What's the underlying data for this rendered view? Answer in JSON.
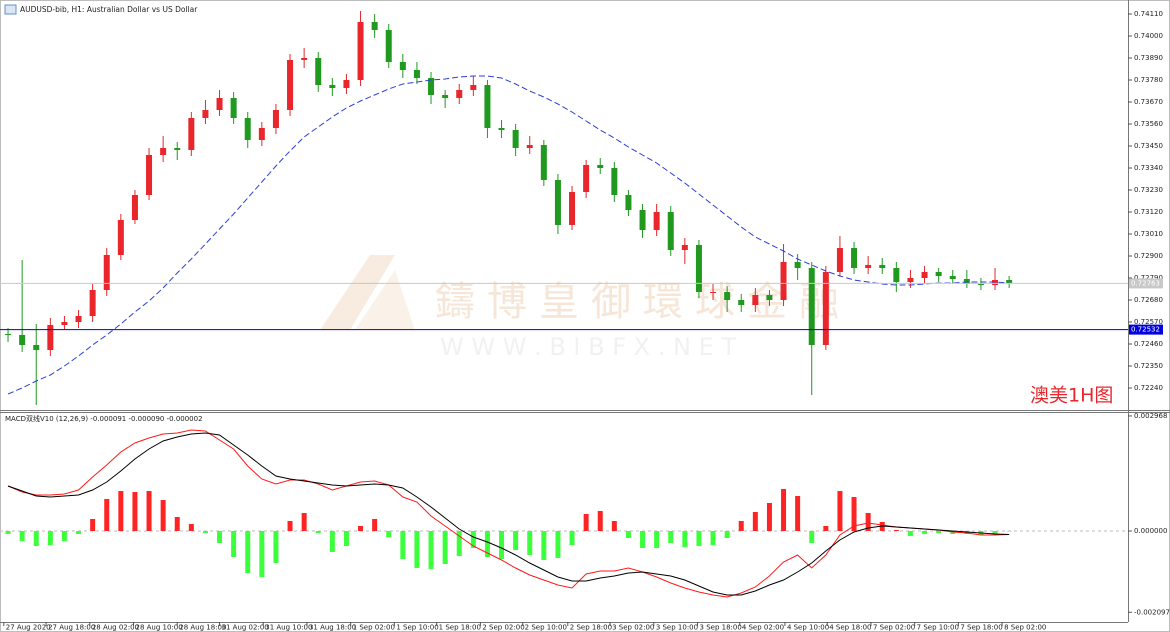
{
  "chart_data": [
    {
      "type": "candlestick",
      "title": "AUDUSD-bib, H1:  Australian Dollar vs US Dollar",
      "annotation": "澳美1H图",
      "watermark": "鑄博皇御環球金融",
      "watermark_url": "W W W . B I B F X . N E T",
      "grid": false,
      "xlim": [
        -0.57,
        79.43
      ],
      "ylim": [
        0.7213,
        0.7418
      ],
      "yticks": [
        {
          "value": 0.7411,
          "label": "0.74110"
        },
        {
          "value": 0.74,
          "label": "0.74000"
        },
        {
          "value": 0.7389,
          "label": "0.73890"
        },
        {
          "value": 0.7378,
          "label": "0.73780"
        },
        {
          "value": 0.7367,
          "label": "0.73670"
        },
        {
          "value": 0.7356,
          "label": "0.73560"
        },
        {
          "value": 0.7345,
          "label": "0.73450"
        },
        {
          "value": 0.7334,
          "label": "0.73340"
        },
        {
          "value": 0.7323,
          "label": "0.73230"
        },
        {
          "value": 0.7312,
          "label": "0.73120"
        },
        {
          "value": 0.7301,
          "label": "0.73010"
        },
        {
          "value": 0.729,
          "label": "0.72900"
        },
        {
          "value": 0.7279,
          "label": "0.72790"
        },
        {
          "value": 0.7268,
          "label": "0.72680"
        },
        {
          "value": 0.7257,
          "label": "0.72570"
        },
        {
          "value": 0.7246,
          "label": "0.72460"
        },
        {
          "value": 0.7235,
          "label": "0.72350"
        },
        {
          "value": 0.7224,
          "label": "0.72240"
        }
      ],
      "up_color": "#e8262c",
      "down_color": "#1f9a1f",
      "open": [
        0.7251,
        0.72505,
        0.72455,
        0.7243,
        0.72555,
        0.7257,
        0.726,
        0.7273,
        0.72905,
        0.7308,
        0.73205,
        0.73405,
        0.7344,
        0.7343,
        0.7359,
        0.7363,
        0.7369,
        0.7359,
        0.7348,
        0.7354,
        0.7363,
        0.7388,
        0.7389,
        0.73755,
        0.7374,
        0.7378,
        0.7407,
        0.7403,
        0.7387,
        0.7383,
        0.7379,
        0.73705,
        0.7369,
        0.7373,
        0.73755,
        0.7354,
        0.7353,
        0.7344,
        0.73455,
        0.7328,
        0.73055,
        0.7322,
        0.73355,
        0.7334,
        0.73205,
        0.7313,
        0.7303,
        0.7312,
        0.7293,
        0.72955,
        0.7272,
        0.7272,
        0.7268,
        0.72655,
        0.72705,
        0.7268,
        0.7287,
        0.7284,
        0.72455,
        0.7282,
        0.7294,
        0.7284,
        0.72855,
        0.7284,
        0.7277,
        0.7279,
        0.7282,
        0.728,
        0.72785,
        0.7276,
        0.72755,
        0.7278
      ],
      "high": [
        0.7254,
        0.7288,
        0.7256,
        0.7259,
        0.726,
        0.7263,
        0.7276,
        0.7294,
        0.7311,
        0.7323,
        0.7344,
        0.735,
        0.7347,
        0.7362,
        0.7368,
        0.7373,
        0.7372,
        0.7362,
        0.7357,
        0.7366,
        0.7391,
        0.7394,
        0.7392,
        0.7379,
        0.7381,
        0.74125,
        0.7411,
        0.7406,
        0.7391,
        0.7387,
        0.7382,
        0.7373,
        0.7376,
        0.738,
        0.7378,
        0.7358,
        0.7356,
        0.735,
        0.7348,
        0.7331,
        0.7325,
        0.7338,
        0.7339,
        0.7337,
        0.7323,
        0.7316,
        0.7316,
        0.7315,
        0.7299,
        0.7298,
        0.7276,
        0.7275,
        0.7271,
        0.7274,
        0.7273,
        0.7296,
        0.7291,
        0.7287,
        0.7285,
        0.73,
        0.7297,
        0.729,
        0.7289,
        0.7287,
        0.7283,
        0.7285,
        0.7284,
        0.7283,
        0.7283,
        0.7279,
        0.7284,
        0.728
      ],
      "low": [
        0.7247,
        0.7242,
        0.72155,
        0.724,
        0.7253,
        0.7254,
        0.7257,
        0.727,
        0.7288,
        0.7306,
        0.7318,
        0.7337,
        0.7338,
        0.734,
        0.7356,
        0.736,
        0.7356,
        0.7344,
        0.7345,
        0.7351,
        0.736,
        0.7384,
        0.7372,
        0.737,
        0.7371,
        0.7375,
        0.7399,
        0.7384,
        0.7379,
        0.7376,
        0.7366,
        0.7364,
        0.7366,
        0.737,
        0.7349,
        0.7349,
        0.734,
        0.7341,
        0.7325,
        0.7301,
        0.7303,
        0.7319,
        0.7331,
        0.7317,
        0.731,
        0.7299,
        0.73,
        0.729,
        0.7286,
        0.7269,
        0.7268,
        0.7262,
        0.7262,
        0.7262,
        0.7265,
        0.7265,
        0.7278,
        0.72205,
        0.7243,
        0.728,
        0.7281,
        0.7281,
        0.7281,
        0.7272,
        0.7274,
        0.7276,
        0.7277,
        0.7276,
        0.7274,
        0.7273,
        0.7273,
        0.7274
      ],
      "close": [
        0.72505,
        0.72455,
        0.7243,
        0.72555,
        0.7257,
        0.726,
        0.7273,
        0.72905,
        0.7308,
        0.73205,
        0.73405,
        0.7344,
        0.7343,
        0.7359,
        0.7363,
        0.7369,
        0.7359,
        0.7348,
        0.7354,
        0.7363,
        0.7388,
        0.7389,
        0.73755,
        0.7374,
        0.7378,
        0.7407,
        0.7403,
        0.7387,
        0.7383,
        0.7379,
        0.73705,
        0.7369,
        0.7373,
        0.73755,
        0.7354,
        0.7353,
        0.7344,
        0.73455,
        0.7328,
        0.73055,
        0.7322,
        0.73355,
        0.7334,
        0.73205,
        0.7313,
        0.7303,
        0.7312,
        0.7293,
        0.72955,
        0.7272,
        0.7272,
        0.7268,
        0.72655,
        0.72705,
        0.7268,
        0.7287,
        0.7284,
        0.72455,
        0.7282,
        0.7294,
        0.7284,
        0.72855,
        0.7284,
        0.7277,
        0.7279,
        0.7282,
        0.728,
        0.72785,
        0.7276,
        0.72755,
        0.7278,
        0.72763
      ],
      "ma": {
        "color": "#2a3fd6",
        "values": [
          0.7221,
          0.7224,
          0.72275,
          0.72305,
          0.7235,
          0.724,
          0.72455,
          0.72505,
          0.7256,
          0.7262,
          0.72675,
          0.7274,
          0.72815,
          0.72885,
          0.7296,
          0.73035,
          0.7311,
          0.7319,
          0.7327,
          0.7335,
          0.73425,
          0.73495,
          0.73545,
          0.73595,
          0.7364,
          0.73675,
          0.73705,
          0.73735,
          0.7376,
          0.7377,
          0.7378,
          0.73785,
          0.73795,
          0.738,
          0.738,
          0.7379,
          0.7376,
          0.73725,
          0.73695,
          0.7366,
          0.7362,
          0.73575,
          0.7353,
          0.7349,
          0.73445,
          0.73405,
          0.73365,
          0.73315,
          0.73265,
          0.7321,
          0.73155,
          0.731,
          0.73045,
          0.72995,
          0.7296,
          0.72925,
          0.72885,
          0.72855,
          0.72825,
          0.728,
          0.7278,
          0.7277,
          0.7276,
          0.72755,
          0.72755,
          0.7276,
          0.72765,
          0.72765,
          0.7277,
          0.7277,
          0.7277,
          0.72765
        ]
      },
      "hlines": [
        {
          "value": 0.72763,
          "color": "#c8c8c8"
        },
        {
          "value": 0.72532,
          "color": "#0000e0"
        }
      ]
    },
    {
      "type": "macd",
      "title": "MACD双线V10 (12,26,9) -0.000091 -0.000090 -0.000002",
      "xlim": [
        -0.57,
        79.43
      ],
      "ylim": [
        -0.002348,
        0.00307
      ],
      "yticks": [
        0.002968,
        {
          "value": 0,
          "label": "0.000000"
        },
        -0.002097
      ],
      "xticks": [
        {
          "value": -0.3,
          "label": "27 Aug 2020"
        },
        {
          "value": 2.7,
          "label": "27 Aug 18:00"
        },
        {
          "value": 5.8,
          "label": "28 Aug 02:00"
        },
        {
          "value": 8.9,
          "label": "28 Aug 10:00"
        },
        {
          "value": 12,
          "label": "28 Aug 18:00"
        },
        {
          "value": 15,
          "label": "31 Aug 02:00"
        },
        {
          "value": 18.1,
          "label": "31 Aug 10:00"
        },
        {
          "value": 21.2,
          "label": "31 Aug 18:00"
        },
        {
          "value": 24.3,
          "label": "1 Sep 02:00"
        },
        {
          "value": 27.4,
          "label": "1 Sep 10:00"
        },
        {
          "value": 30.4,
          "label": "1 Sep 18:00"
        },
        {
          "value": 33.5,
          "label": "2 Sep 02:00"
        },
        {
          "value": 36.5,
          "label": "2 Sep 10:00"
        },
        {
          "value": 39.7,
          "label": "2 Sep 18:00"
        },
        {
          "value": 42.7,
          "label": "3 Sep 02:00"
        },
        {
          "value": 45.8,
          "label": "3 Sep 10:00"
        },
        {
          "value": 48.9,
          "label": "3 Sep 18:00"
        },
        {
          "value": 51.9,
          "label": "4 Sep 02:00"
        },
        {
          "value": 55.1,
          "label": "4 Sep 10:00"
        },
        {
          "value": 58.1,
          "label": "4 Sep 18:00"
        },
        {
          "value": 61.2,
          "label": "7 Sep 02:00"
        },
        {
          "value": 64.3,
          "label": "7 Sep 10:00"
        },
        {
          "value": 67.4,
          "label": "7 Sep 18:00"
        },
        {
          "value": 70.5,
          "label": "8 Sep 02:00"
        }
      ],
      "up_color": "#ff2424",
      "down_color": "#3cff3c",
      "histogram": [
        -7.7e-05,
        -0.000258,
        -0.000387,
        -0.000361,
        -0.000258,
        -7.7e-05,
        0.00031,
        0.000826,
        0.001032,
        0.001006,
        0.001032,
        0.0008,
        0.000361,
        0.000181,
        -5.2e-05,
        -0.00031,
        -0.000671,
        -0.001084,
        -0.001187,
        -0.000826,
        0.000258,
        0.000464,
        -5.2e-05,
        -0.000542,
        -0.000387,
        0.000129,
        0.00031,
        -0.000155,
        -0.000722,
        -0.000955,
        -0.00098,
        -0.000851,
        -0.000645,
        -0.000439,
        -0.000671,
        -0.000722,
        -0.00049,
        -0.000619,
        -0.000748,
        -0.000697,
        -0.000361,
        0.000439,
        0.000516,
        0.000258,
        -0.000181,
        -0.000439,
        -0.000439,
        -0.00031,
        -0.000413,
        -0.000387,
        -0.000361,
        -0.000181,
        0.000258,
        0.00049,
        0.000722,
        0.001084,
        0.000903,
        -0.00031,
        0.000129,
        0.001032,
        0.000877,
        0.000464,
        0.000232,
        2.6e-05,
        -0.000129,
        -7.7e-05,
        -5.2e-05,
        -7.7e-05,
        -7.7e-05,
        -0.000103,
        -7.7e-05,
        -2e-06
      ],
      "series": [
        {
          "color": "#ff1a1a",
          "values": [
            0.001161,
            0.001006,
            0.000929,
            0.000929,
            0.000955,
            0.001058,
            0.001393,
            0.001703,
            0.002038,
            0.00227,
            0.002399,
            0.002503,
            0.002528,
            0.002606,
            0.00258,
            0.002348,
            0.002116,
            0.001677,
            0.001342,
            0.001213,
            0.001316,
            0.001316,
            0.001213,
            0.001058,
            0.001161,
            0.001264,
            0.00129,
            0.001187,
            0.000877,
            0.000748,
            0.000387,
            0.000129,
            -0.000129,
            -0.000387,
            -0.000568,
            -0.000748,
            -0.000955,
            -0.001135,
            -0.001264,
            -0.001393,
            -0.001471,
            -0.001109,
            -0.001032,
            -0.001032,
            -0.000955,
            -0.001058,
            -0.001187,
            -0.001342,
            -0.001471,
            -0.001574,
            -0.001651,
            -0.001703,
            -0.0016,
            -0.001445,
            -0.001161,
            -0.0008,
            -0.000619,
            -0.000955,
            -0.000619,
            -0.000103,
            0.000129,
            0.000206,
            0.000155,
            0.000103,
            7.7e-05,
            5.2e-05,
            2.6e-05,
            -2.6e-05,
            -5.2e-05,
            -0.000103,
            -0.000103,
            -9.1e-05
          ]
        },
        {
          "color": "#000000",
          "values": [
            0.001161,
            0.001032,
            0.000903,
            0.000877,
            0.000903,
            0.000929,
            0.001058,
            0.001264,
            0.001548,
            0.001858,
            0.002116,
            0.002322,
            0.002425,
            0.002503,
            0.002528,
            0.002477,
            0.002219,
            0.001961,
            0.001677,
            0.001419,
            0.001342,
            0.00129,
            0.001238,
            0.001187,
            0.001161,
            0.001187,
            0.001213,
            0.001187,
            0.001109,
            0.000877,
            0.000619,
            0.000335,
            5.2e-05,
            -0.000155,
            -0.000284,
            -0.000439,
            -0.000619,
            -0.000826,
            -0.001006,
            -0.001187,
            -0.00129,
            -0.00129,
            -0.001213,
            -0.001161,
            -0.001084,
            -0.001058,
            -0.001109,
            -0.001161,
            -0.001264,
            -0.001419,
            -0.001574,
            -0.001651,
            -0.001651,
            -0.001548,
            -0.001393,
            -0.001264,
            -0.001058,
            -0.000826,
            -0.000516,
            -0.000232,
            -2.6e-05,
            7.7e-05,
            0.000129,
            0.000103,
            7.7e-05,
            5.2e-05,
            2.6e-05,
            0,
            -2.6e-05,
            -5.2e-05,
            -7.7e-05,
            -9e-05
          ]
        }
      ]
    }
  ]
}
